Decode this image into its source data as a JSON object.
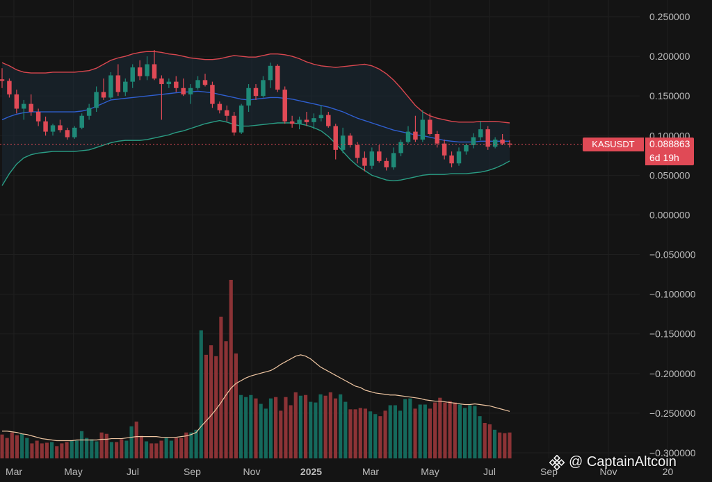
{
  "colors": {
    "background": "#141414",
    "up": "#1f8a78",
    "down": "#e04a56",
    "up_volume": "#15695c",
    "down_volume": "#8c3336",
    "bb_upper": "#d9474f",
    "bb_lower": "#2a9d84",
    "bb_basis": "#2f5fd0",
    "vol_ma": "#f0c7a3",
    "grid": "#1f1f1f"
  },
  "watermark": {
    "text": "@ CaptainAltcoin",
    "icon": "binance-diamond-icon"
  },
  "price_tag": {
    "symbol": "KASUSDT",
    "price": "0.088863",
    "countdown": "6d 19h"
  },
  "chart_data": {
    "type": "candlestick",
    "title": "",
    "y_axis": {
      "range": [
        -0.3,
        0.25
      ],
      "tick_labels": [
        "0.250000",
        "0.200000",
        "0.150000",
        "0.100000",
        "0.050000",
        "0.000000",
        "−0.050000",
        "−0.100000",
        "−0.150000",
        "−0.200000",
        "−0.250000",
        "−0.300000"
      ]
    },
    "x_axis": {
      "tick_labels": [
        "Mar",
        "May",
        "Jul",
        "Sep",
        "Nov",
        "2025",
        "Mar",
        "May",
        "Jul",
        "Sep",
        "Nov",
        "20"
      ],
      "tick_dates": [
        "2024-03",
        "2024-05",
        "2024-07",
        "2024-09",
        "2024-11",
        "2025-01",
        "2025-03",
        "2025-05",
        "2025-07",
        "2025-09",
        "2025-11",
        "2026-01"
      ]
    },
    "last_price": 0.088863,
    "candles": [
      [
        0.171,
        0.185,
        0.16,
        0.169
      ],
      [
        0.169,
        0.172,
        0.148,
        0.152
      ],
      [
        0.152,
        0.158,
        0.128,
        0.134
      ],
      [
        0.134,
        0.145,
        0.12,
        0.14
      ],
      [
        0.14,
        0.152,
        0.125,
        0.13
      ],
      [
        0.13,
        0.134,
        0.112,
        0.118
      ],
      [
        0.118,
        0.124,
        0.1,
        0.105
      ],
      [
        0.105,
        0.115,
        0.1,
        0.113
      ],
      [
        0.113,
        0.12,
        0.104,
        0.107
      ],
      [
        0.107,
        0.11,
        0.095,
        0.098
      ],
      [
        0.098,
        0.112,
        0.096,
        0.11
      ],
      [
        0.11,
        0.128,
        0.108,
        0.125
      ],
      [
        0.125,
        0.14,
        0.12,
        0.135
      ],
      [
        0.135,
        0.162,
        0.13,
        0.155
      ],
      [
        0.155,
        0.172,
        0.145,
        0.148
      ],
      [
        0.148,
        0.18,
        0.146,
        0.176
      ],
      [
        0.176,
        0.19,
        0.15,
        0.155
      ],
      [
        0.155,
        0.172,
        0.15,
        0.168
      ],
      [
        0.168,
        0.19,
        0.16,
        0.186
      ],
      [
        0.186,
        0.195,
        0.17,
        0.175
      ],
      [
        0.175,
        0.2,
        0.17,
        0.19
      ],
      [
        0.19,
        0.208,
        0.17,
        0.172
      ],
      [
        0.172,
        0.176,
        0.12,
        0.165
      ],
      [
        0.165,
        0.172,
        0.16,
        0.168
      ],
      [
        0.168,
        0.175,
        0.155,
        0.16
      ],
      [
        0.16,
        0.172,
        0.15,
        0.152
      ],
      [
        0.152,
        0.165,
        0.14,
        0.16
      ],
      [
        0.16,
        0.175,
        0.158,
        0.17
      ],
      [
        0.17,
        0.178,
        0.162,
        0.164
      ],
      [
        0.164,
        0.168,
        0.135,
        0.14
      ],
      [
        0.14,
        0.143,
        0.128,
        0.132
      ],
      [
        0.132,
        0.138,
        0.118,
        0.125
      ],
      [
        0.125,
        0.13,
        0.1,
        0.104
      ],
      [
        0.104,
        0.14,
        0.102,
        0.138
      ],
      [
        0.138,
        0.165,
        0.13,
        0.16
      ],
      [
        0.16,
        0.165,
        0.145,
        0.15
      ],
      [
        0.15,
        0.175,
        0.148,
        0.17
      ],
      [
        0.17,
        0.192,
        0.16,
        0.188
      ],
      [
        0.188,
        0.19,
        0.155,
        0.158
      ],
      [
        0.158,
        0.162,
        0.115,
        0.118
      ],
      [
        0.118,
        0.125,
        0.11,
        0.115
      ],
      [
        0.115,
        0.124,
        0.108,
        0.12
      ],
      [
        0.12,
        0.13,
        0.112,
        0.117
      ],
      [
        0.117,
        0.128,
        0.108,
        0.122
      ],
      [
        0.122,
        0.138,
        0.118,
        0.126
      ],
      [
        0.126,
        0.13,
        0.11,
        0.112
      ],
      [
        0.112,
        0.115,
        0.07,
        0.082
      ],
      [
        0.082,
        0.11,
        0.078,
        0.1
      ],
      [
        0.1,
        0.103,
        0.085,
        0.088
      ],
      [
        0.088,
        0.092,
        0.065,
        0.072
      ],
      [
        0.072,
        0.08,
        0.055,
        0.062
      ],
      [
        0.062,
        0.085,
        0.058,
        0.08
      ],
      [
        0.08,
        0.088,
        0.066,
        0.068
      ],
      [
        0.068,
        0.072,
        0.056,
        0.06
      ],
      [
        0.06,
        0.085,
        0.057,
        0.078
      ],
      [
        0.078,
        0.095,
        0.074,
        0.092
      ],
      [
        0.092,
        0.112,
        0.09,
        0.105
      ],
      [
        0.105,
        0.125,
        0.092,
        0.095
      ],
      [
        0.095,
        0.132,
        0.092,
        0.12
      ],
      [
        0.12,
        0.128,
        0.1,
        0.102
      ],
      [
        0.102,
        0.106,
        0.085,
        0.09
      ],
      [
        0.09,
        0.095,
        0.07,
        0.075
      ],
      [
        0.075,
        0.08,
        0.06,
        0.065
      ],
      [
        0.065,
        0.085,
        0.062,
        0.08
      ],
      [
        0.08,
        0.09,
        0.076,
        0.088
      ],
      [
        0.088,
        0.103,
        0.084,
        0.098
      ],
      [
        0.098,
        0.118,
        0.094,
        0.108
      ],
      [
        0.108,
        0.112,
        0.082,
        0.086
      ],
      [
        0.086,
        0.098,
        0.084,
        0.095
      ],
      [
        0.095,
        0.102,
        0.088,
        0.09
      ],
      [
        0.09,
        0.094,
        0.085,
        0.089
      ]
    ],
    "bollinger": {
      "upper": [
        0.192,
        0.188,
        0.183,
        0.18,
        0.179,
        0.179,
        0.179,
        0.18,
        0.18,
        0.18,
        0.18,
        0.181,
        0.182,
        0.185,
        0.19,
        0.195,
        0.198,
        0.2,
        0.203,
        0.205,
        0.206,
        0.206,
        0.205,
        0.203,
        0.202,
        0.2,
        0.198,
        0.197,
        0.196,
        0.196,
        0.197,
        0.199,
        0.201,
        0.2,
        0.199,
        0.199,
        0.201,
        0.203,
        0.203,
        0.202,
        0.2,
        0.197,
        0.193,
        0.19,
        0.188,
        0.187,
        0.186,
        0.187,
        0.188,
        0.189,
        0.19,
        0.188,
        0.184,
        0.178,
        0.17,
        0.16,
        0.149,
        0.138,
        0.13,
        0.125,
        0.122,
        0.12,
        0.118,
        0.117,
        0.117,
        0.117,
        0.118,
        0.118,
        0.118,
        0.117,
        0.116
      ],
      "basis": [
        0.12,
        0.124,
        0.127,
        0.129,
        0.13,
        0.13,
        0.13,
        0.13,
        0.13,
        0.13,
        0.13,
        0.131,
        0.133,
        0.137,
        0.141,
        0.145,
        0.146,
        0.147,
        0.148,
        0.149,
        0.15,
        0.151,
        0.152,
        0.153,
        0.154,
        0.155,
        0.155,
        0.156,
        0.155,
        0.154,
        0.152,
        0.15,
        0.148,
        0.146,
        0.145,
        0.146,
        0.147,
        0.148,
        0.148,
        0.147,
        0.146,
        0.144,
        0.142,
        0.14,
        0.138,
        0.136,
        0.133,
        0.13,
        0.126,
        0.122,
        0.119,
        0.116,
        0.113,
        0.11,
        0.107,
        0.105,
        0.103,
        0.101,
        0.1,
        0.098,
        0.096,
        0.094,
        0.093,
        0.092,
        0.092,
        0.092,
        0.093,
        0.093,
        0.093,
        0.093,
        0.093
      ],
      "lower": [
        0.037,
        0.052,
        0.064,
        0.072,
        0.076,
        0.078,
        0.079,
        0.08,
        0.08,
        0.08,
        0.08,
        0.081,
        0.082,
        0.085,
        0.088,
        0.091,
        0.093,
        0.094,
        0.094,
        0.094,
        0.095,
        0.097,
        0.099,
        0.101,
        0.104,
        0.106,
        0.109,
        0.112,
        0.115,
        0.117,
        0.119,
        0.117,
        0.114,
        0.112,
        0.112,
        0.113,
        0.114,
        0.115,
        0.116,
        0.116,
        0.116,
        0.115,
        0.113,
        0.11,
        0.106,
        0.099,
        0.09,
        0.08,
        0.07,
        0.062,
        0.056,
        0.05,
        0.047,
        0.044,
        0.043,
        0.044,
        0.046,
        0.048,
        0.05,
        0.051,
        0.051,
        0.051,
        0.052,
        0.052,
        0.052,
        0.053,
        0.054,
        0.056,
        0.059,
        0.063,
        0.068
      ]
    },
    "volume": {
      "values": [
        0.035,
        0.03,
        0.038,
        0.034,
        0.036,
        0.03,
        0.022,
        0.026,
        0.022,
        0.023,
        0.024,
        0.018,
        0.022,
        0.024,
        0.026,
        0.026,
        0.04,
        0.03,
        0.028,
        0.025,
        0.038,
        0.036,
        0.024,
        0.024,
        0.028,
        0.026,
        0.047,
        0.054,
        0.033,
        0.025,
        0.022,
        0.022,
        0.026,
        0.03,
        0.026,
        0.03,
        0.03,
        0.038,
        0.038,
        0.042,
        0.188,
        0.152,
        0.166,
        0.15,
        0.208,
        0.172,
        0.262,
        0.154,
        0.093,
        0.09,
        0.093,
        0.088,
        0.08,
        0.073,
        0.088,
        0.09,
        0.07,
        0.09,
        0.078,
        0.097,
        0.092,
        0.093,
        0.083,
        0.082,
        0.094,
        0.092,
        0.097,
        0.088,
        0.094,
        0.083,
        0.072,
        0.072,
        0.074,
        0.073,
        0.069,
        0.065,
        0.062,
        0.07,
        0.078,
        0.078,
        0.07,
        0.087,
        0.088,
        0.073,
        0.079,
        0.079,
        0.073,
        0.082,
        0.089,
        0.082,
        0.084,
        0.082,
        0.079,
        0.074,
        0.078,
        0.077,
        0.062,
        0.052,
        0.05,
        0.042,
        0.038,
        0.037,
        0.038
      ],
      "ma": [
        0.04,
        0.04,
        0.039,
        0.038,
        0.036,
        0.035,
        0.033,
        0.031,
        0.029,
        0.028,
        0.027,
        0.026,
        0.026,
        0.026,
        0.026,
        0.027,
        0.027,
        0.027,
        0.027,
        0.027,
        0.028,
        0.028,
        0.029,
        0.029,
        0.029,
        0.03,
        0.031,
        0.032,
        0.032,
        0.032,
        0.032,
        0.032,
        0.031,
        0.031,
        0.031,
        0.031,
        0.032,
        0.033,
        0.035,
        0.038,
        0.047,
        0.055,
        0.063,
        0.072,
        0.082,
        0.093,
        0.103,
        0.11,
        0.114,
        0.118,
        0.121,
        0.123,
        0.125,
        0.127,
        0.129,
        0.133,
        0.138,
        0.142,
        0.146,
        0.15,
        0.152,
        0.15,
        0.146,
        0.14,
        0.134,
        0.13,
        0.126,
        0.122,
        0.118,
        0.114,
        0.11,
        0.106,
        0.104,
        0.1,
        0.098,
        0.096,
        0.095,
        0.094,
        0.093,
        0.093,
        0.092,
        0.091,
        0.09,
        0.089,
        0.088,
        0.086,
        0.085,
        0.084,
        0.084,
        0.083,
        0.082,
        0.081,
        0.08,
        0.079,
        0.079,
        0.08,
        0.079,
        0.078,
        0.077,
        0.075,
        0.073,
        0.071,
        0.069
      ]
    }
  }
}
